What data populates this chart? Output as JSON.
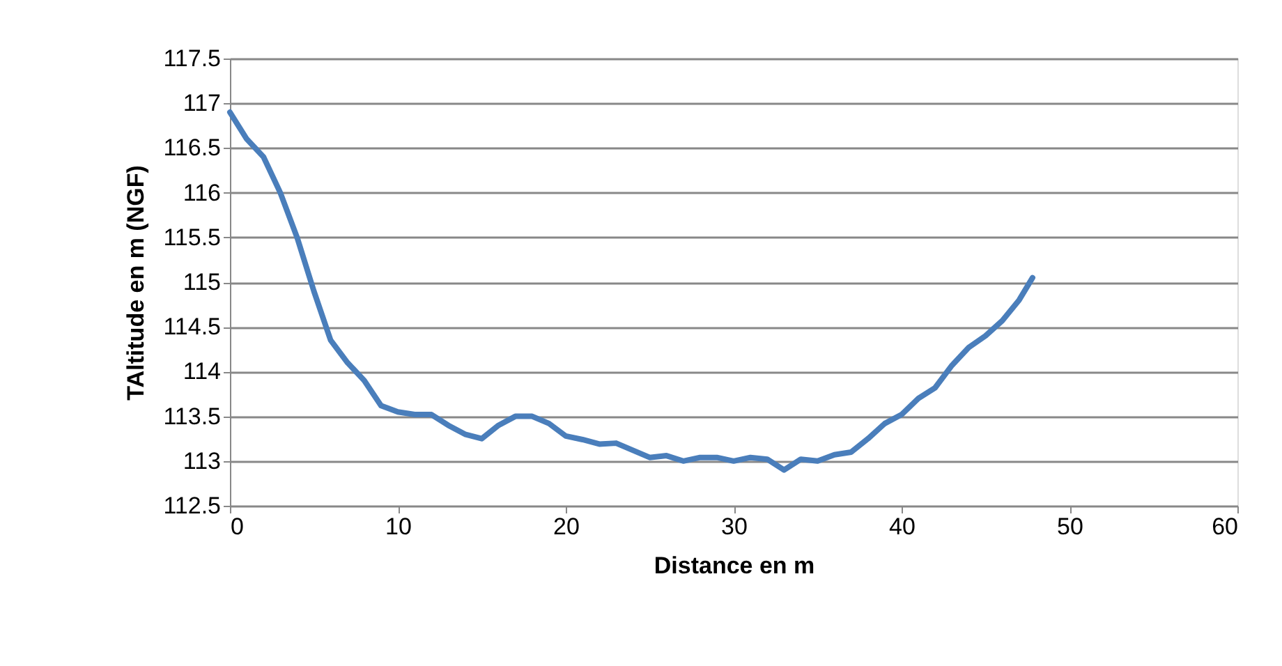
{
  "chart_data": {
    "type": "line",
    "xlabel": "Distance en m",
    "ylabel": "TAltitude en m (NGF)",
    "x": [
      0,
      1,
      2,
      3,
      4,
      5,
      6,
      7,
      8,
      9,
      10,
      11,
      12,
      13,
      14,
      15,
      16,
      17,
      18,
      19,
      20,
      21,
      22,
      23,
      24,
      25,
      26,
      27,
      28,
      29,
      30,
      31,
      32,
      33,
      34,
      35,
      36,
      37,
      38,
      39,
      40,
      41,
      42,
      43,
      44,
      45,
      46,
      47,
      47.8
    ],
    "series": [
      {
        "color": "#4a7ebb",
        "values": [
          116.9,
          116.6,
          116.4,
          116.0,
          115.5,
          114.9,
          114.35,
          114.1,
          113.9,
          113.62,
          113.55,
          113.52,
          113.52,
          113.4,
          113.3,
          113.25,
          113.4,
          113.5,
          113.5,
          113.42,
          113.28,
          113.24,
          113.19,
          113.2,
          113.12,
          113.04,
          113.06,
          113.0,
          113.04,
          113.04,
          113.0,
          113.04,
          113.02,
          112.9,
          113.02,
          113.0,
          113.07,
          113.1,
          113.25,
          113.42,
          113.52,
          113.7,
          113.82,
          114.07,
          114.27,
          114.4,
          114.57,
          114.8,
          115.05
        ]
      }
    ],
    "xlim": [
      0,
      60
    ],
    "xticks": [
      0,
      10,
      20,
      30,
      40,
      50,
      60
    ],
    "ylim": [
      112.5,
      117.5
    ],
    "yticks": [
      112.5,
      113,
      113.5,
      114,
      114.5,
      115,
      115.5,
      116,
      116.5,
      117,
      117.5
    ],
    "grid": "y",
    "marker": "none",
    "line_style": "solid"
  }
}
